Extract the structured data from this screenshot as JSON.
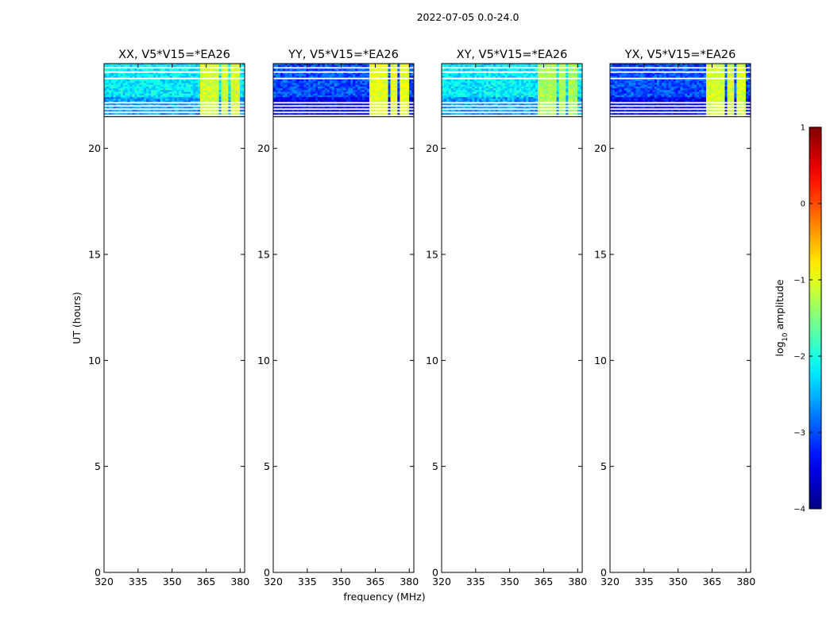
{
  "chart_data": {
    "type": "heatmap",
    "title": "2022-07-05 0.0-24.0",
    "xlabel": "frequency (MHz)",
    "ylabel": "UT (hours)",
    "xlim": [
      320,
      382
    ],
    "ylim": [
      0,
      24
    ],
    "xticks": [
      320,
      335,
      350,
      365,
      380
    ],
    "yticks": [
      0,
      5,
      10,
      15,
      20
    ],
    "colorbar": {
      "label_prefix": "log",
      "label_sub": "10",
      "label_suffix": " amplitude",
      "range": [
        -4,
        1
      ],
      "ticks": [
        "−4",
        "−3",
        "−2",
        "−1",
        "0",
        "1"
      ],
      "colormap": "jet"
    },
    "data_time_range_hours": [
      21.5,
      24.0
    ],
    "blank_rows_hours": [
      21.55,
      21.7,
      21.85,
      22.0,
      22.15,
      23.3,
      23.6,
      23.8
    ],
    "rfi_frequency_bands_mhz": [
      [
        362,
        366
      ],
      [
        367,
        371
      ],
      [
        372,
        375
      ],
      [
        376,
        380
      ]
    ],
    "panels": [
      {
        "title": "XX, V5*V15=*EA26",
        "background_level": -2.2,
        "rfi_level": -1.1
      },
      {
        "title": "YY, V5*V15=*EA26",
        "background_level": -3.0,
        "rfi_level": -1.0
      },
      {
        "title": "XY, V5*V15=*EA26",
        "background_level": -2.2,
        "rfi_level": -1.3
      },
      {
        "title": "YX, V5*V15=*EA26",
        "background_level": -3.0,
        "rfi_level": -1.1
      }
    ]
  }
}
